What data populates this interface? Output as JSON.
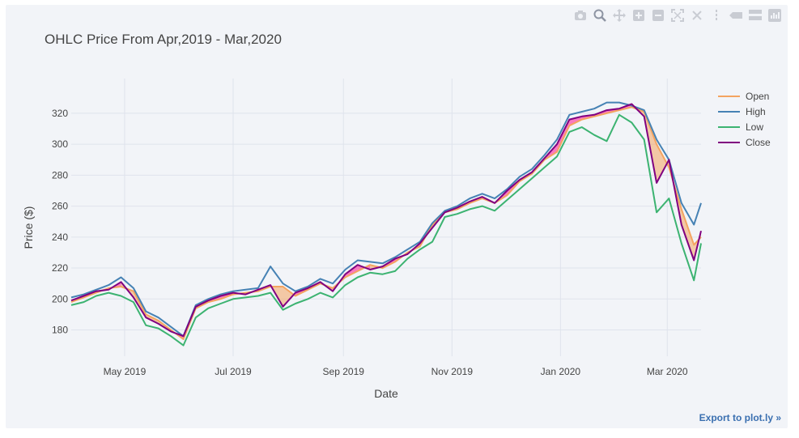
{
  "toolbar": {
    "icons": [
      "camera-icon",
      "zoom-icon",
      "pan-icon",
      "zoom-in-icon",
      "zoom-out-icon",
      "autoscale-icon",
      "reset-axes-icon",
      "spike-lines-icon",
      "hover-closest-icon",
      "hover-compare-icon",
      "plotly-logo-icon"
    ]
  },
  "export_label": "Export to plot.ly »",
  "colors": {
    "background": "#f2f4f8",
    "grid": "#dfe3ec",
    "open": "#f4a460",
    "high": "#4682b4",
    "low": "#3cb371",
    "close": "#800080",
    "rising_fill": "#ff1493",
    "link": "#3a6fb0"
  },
  "chart_data": {
    "type": "line",
    "title": "OHLC Price From Apr,2019 - Mar,2020",
    "xlabel": "Date",
    "ylabel": "Price ($)",
    "xlim": [
      "2019-04-01",
      "2020-03-20"
    ],
    "ylim": [
      163,
      332
    ],
    "y_ticks": [
      180,
      200,
      220,
      240,
      260,
      280,
      300,
      320
    ],
    "x_ticks": [
      {
        "date": "2019-05-01",
        "label": "May 2019"
      },
      {
        "date": "2019-07-01",
        "label": "Jul 2019"
      },
      {
        "date": "2019-09-01",
        "label": "Sep 2019"
      },
      {
        "date": "2019-11-01",
        "label": "Nov 2019"
      },
      {
        "date": "2020-01-01",
        "label": "Jan 2020"
      },
      {
        "date": "2020-03-01",
        "label": "Mar 2020"
      }
    ],
    "grid": true,
    "legend_position": "top-right",
    "x": [
      "2019-04-01",
      "2019-04-08",
      "2019-04-15",
      "2019-04-22",
      "2019-04-29",
      "2019-05-06",
      "2019-05-13",
      "2019-05-20",
      "2019-05-27",
      "2019-06-03",
      "2019-06-10",
      "2019-06-17",
      "2019-06-24",
      "2019-07-01",
      "2019-07-08",
      "2019-07-15",
      "2019-07-22",
      "2019-07-29",
      "2019-08-05",
      "2019-08-12",
      "2019-08-19",
      "2019-08-26",
      "2019-09-02",
      "2019-09-09",
      "2019-09-16",
      "2019-09-23",
      "2019-09-30",
      "2019-10-07",
      "2019-10-14",
      "2019-10-21",
      "2019-10-28",
      "2019-11-04",
      "2019-11-11",
      "2019-11-18",
      "2019-11-25",
      "2019-12-02",
      "2019-12-09",
      "2019-12-16",
      "2019-12-23",
      "2019-12-30",
      "2020-01-06",
      "2020-01-13",
      "2020-01-20",
      "2020-01-27",
      "2020-02-03",
      "2020-02-10",
      "2020-02-17",
      "2020-02-24",
      "2020-03-02",
      "2020-03-09",
      "2020-03-16",
      "2020-03-20"
    ],
    "series": [
      {
        "name": "Open",
        "values": [
          198,
          201,
          204,
          207,
          208,
          205,
          190,
          186,
          180,
          174,
          194,
          198,
          200,
          203,
          204,
          205,
          208,
          208,
          202,
          206,
          210,
          207,
          214,
          218,
          222,
          220,
          224,
          230,
          234,
          248,
          256,
          258,
          262,
          265,
          262,
          267,
          276,
          281,
          290,
          295,
          312,
          316,
          318,
          320,
          322,
          324,
          321,
          300,
          285,
          258,
          235,
          240
        ]
      },
      {
        "name": "High",
        "values": [
          201,
          203,
          206,
          209,
          214,
          207,
          192,
          188,
          182,
          176,
          196,
          200,
          203,
          205,
          206,
          207,
          221,
          210,
          205,
          208,
          213,
          210,
          219,
          225,
          224,
          223,
          227,
          232,
          237,
          249,
          257,
          260,
          265,
          268,
          265,
          271,
          279,
          284,
          293,
          303,
          319,
          321,
          323,
          327,
          327,
          325,
          322,
          303,
          290,
          262,
          248,
          262
        ]
      },
      {
        "name": "Low",
        "values": [
          196,
          198,
          202,
          204,
          202,
          198,
          183,
          181,
          176,
          170,
          188,
          194,
          197,
          200,
          201,
          202,
          204,
          193,
          197,
          200,
          204,
          201,
          209,
          214,
          217,
          216,
          218,
          226,
          232,
          237,
          253,
          255,
          258,
          260,
          257,
          264,
          271,
          278,
          285,
          292,
          308,
          311,
          306,
          302,
          319,
          314,
          303,
          256,
          265,
          236,
          212,
          236
        ]
      },
      {
        "name": "Close",
        "values": [
          199,
          202,
          205,
          206,
          211,
          201,
          188,
          184,
          179,
          176,
          195,
          199,
          202,
          204,
          203,
          206,
          209,
          195,
          204,
          207,
          211,
          205,
          216,
          222,
          219,
          221,
          226,
          229,
          236,
          246,
          256,
          259,
          263,
          266,
          262,
          270,
          277,
          282,
          291,
          300,
          316,
          318,
          319,
          322,
          323,
          326,
          318,
          275,
          290,
          248,
          225,
          244
        ]
      }
    ]
  }
}
